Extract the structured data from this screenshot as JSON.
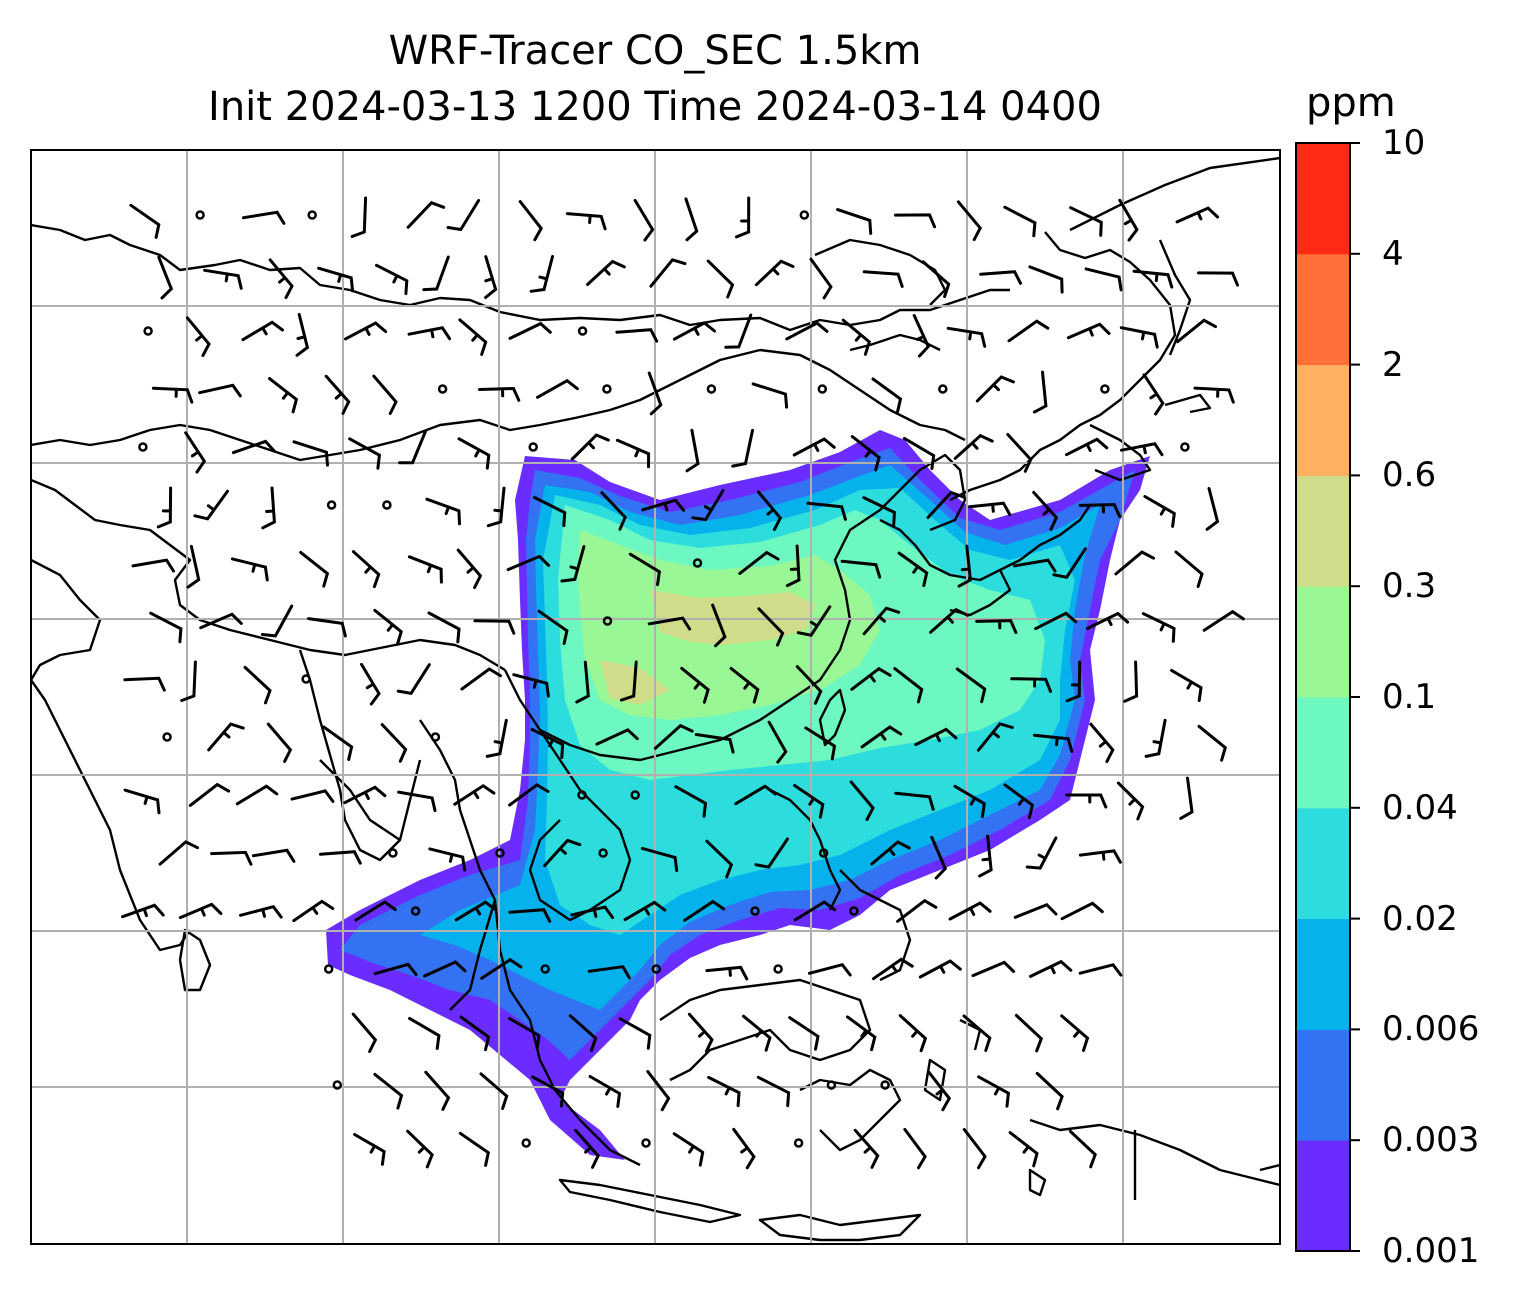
{
  "title": {
    "line1": "WRF-Tracer CO_SEC 1.5km",
    "line2": "Init 2024-03-13 1200 Time 2024-03-14 0400"
  },
  "colorbar": {
    "unit": "ppm",
    "levels": [
      "0.001",
      "0.003",
      "0.006",
      "0.02",
      "0.04",
      "0.1",
      "0.3",
      "0.6",
      "2",
      "4",
      "10"
    ],
    "colors": [
      "#6a2cff",
      "#3372f2",
      "#05b2eb",
      "#2ddddd",
      "#6cf8c0",
      "#99f795",
      "#d0dc8a",
      "#ffb060",
      "#ff7038",
      "#ff2b17"
    ]
  },
  "map": {
    "grid": true,
    "land_border_color": "#000000",
    "grid_color": "#b0b0b0",
    "plume_region": "East Asia / Southeast Asia",
    "wind_barbs": true
  }
}
